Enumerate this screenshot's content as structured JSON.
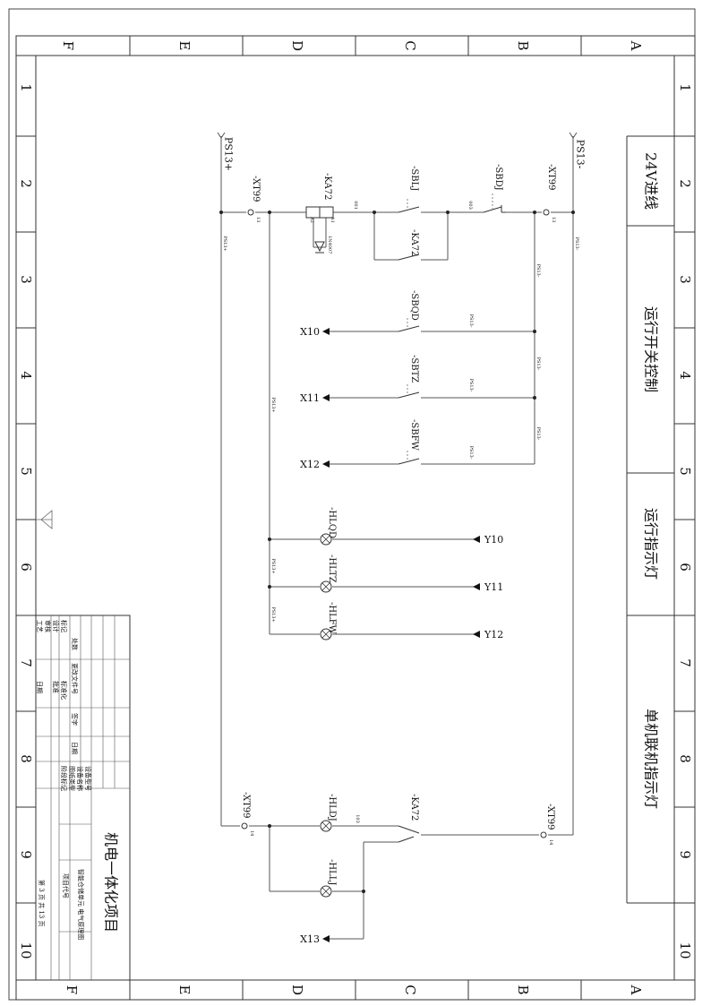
{
  "frame": {
    "top_cols": [
      "F",
      "E",
      "D",
      "C",
      "B",
      "A"
    ],
    "bottom_cols": [
      "F",
      "E",
      "D",
      "C",
      "B",
      "A"
    ],
    "rows": [
      "1",
      "2",
      "3",
      "4",
      "5",
      "6",
      "7",
      "8",
      "9",
      "10"
    ]
  },
  "sections": [
    "24V进线",
    "运行开关控制",
    "运行指示灯",
    "单机联机指示灯"
  ],
  "rails": {
    "plus": "PS13+",
    "minus": "PS13-"
  },
  "components": {
    "xt99": "-XT99",
    "ka72": "-KA72",
    "sblj": "-SBLJ",
    "sbdj": "-SBDJ",
    "sbqd": "-SBQD",
    "sbtz": "-SBTZ",
    "sbfw": "-SBFW",
    "hlqd": "-HLQD",
    "hltz": "-HLTZ",
    "hlfw": "-HLFW",
    "hldj": "-HLDJ",
    "hllj": "-HLLJ",
    "diode": "1N4007"
  },
  "wires": {
    "w001": "001",
    "w003": "003",
    "w103": "103"
  },
  "terminals": {
    "t13": "13",
    "t14": "14",
    "a1": "A1",
    "a2": "A2"
  },
  "io": {
    "x10": "X10",
    "x11": "X11",
    "x12": "X12",
    "x13": "X13",
    "y10": "Y10",
    "y11": "Y11",
    "y12": "Y12"
  },
  "title_block": {
    "project": "机电一体化项目",
    "project_code_label": "项目代号",
    "drawing_name": "智能仓储单元 电气原理图",
    "sheet": "第 3 页  共 13 页",
    "headers": [
      "标记",
      "处数",
      "更改文件号",
      "签字",
      "日期"
    ],
    "roles": [
      "设计",
      "审核",
      "工艺",
      "批准"
    ],
    "roles2": [
      "标准化",
      "批准",
      "日期"
    ],
    "fields": [
      "设备型号",
      "设备名称",
      "图纸类型",
      "阶段标记"
    ]
  }
}
